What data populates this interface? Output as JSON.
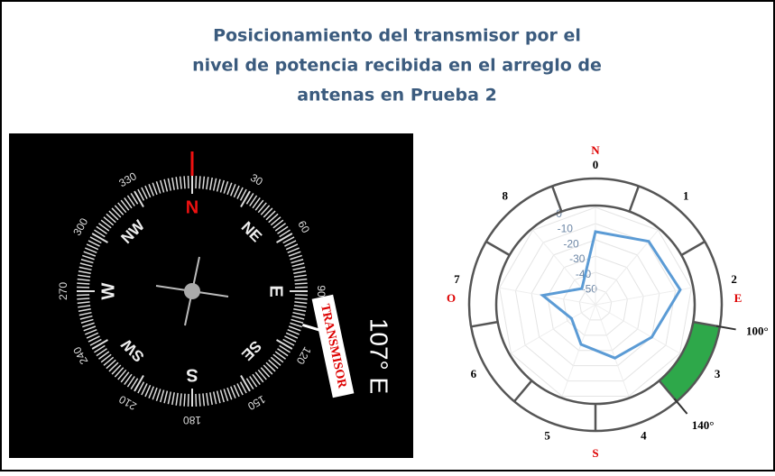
{
  "title": "Posicionamiento del transmisor por el nivel de potencia recibida en el arreglo de antenas en Prueba 2",
  "compass": {
    "degree_labels": [
      "30",
      "60",
      "90",
      "120",
      "150",
      "180",
      "210",
      "240",
      "270",
      "300",
      "330"
    ],
    "cardinals": [
      "N",
      "NE",
      "E",
      "SE",
      "S",
      "SW",
      "W",
      "NW"
    ],
    "heading": "107° E",
    "marker": "TRANSMISOR"
  },
  "chart_data": {
    "type": "radar",
    "categories": [
      "0",
      "1",
      "2",
      "3",
      "4",
      "5",
      "6",
      "7",
      "8"
    ],
    "cardinals": [
      "N",
      "E",
      "S",
      "O"
    ],
    "series": [
      {
        "color": "#5b9bd5",
        "values": [
          -15,
          -9,
          -7,
          -20,
          -25,
          -34,
          -43,
          -27,
          -47
        ]
      }
    ],
    "rlim": [
      -60,
      0
    ],
    "rticks": [
      0,
      -10,
      -20,
      -30,
      -40,
      -50
    ],
    "highlight": {
      "from": {
        "value": 100,
        "label": "100°"
      },
      "to": {
        "value": 140,
        "label": "140°"
      },
      "color": "#2ea84a"
    }
  }
}
